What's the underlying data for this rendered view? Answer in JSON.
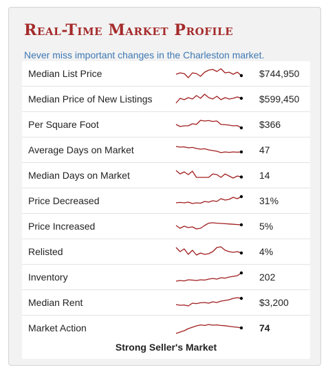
{
  "header": {
    "title": "Real-Time Market Profile",
    "subtitle": "Never miss important changes in the Charleston market."
  },
  "colors": {
    "title": "#a52a2a",
    "subtitle": "#3d78b3",
    "sparkline": "#a01c1c",
    "endpoint": "#000000"
  },
  "metrics": [
    {
      "label": "Median List Price",
      "value": "$744,950"
    },
    {
      "label": "Median Price of New Listings",
      "value": "$599,450"
    },
    {
      "label": "Per Square Foot",
      "value": "$366"
    },
    {
      "label": "Average Days on Market",
      "value": "47"
    },
    {
      "label": "Median Days on Market",
      "value": "14"
    },
    {
      "label": "Price Decreased",
      "value": "31%"
    },
    {
      "label": "Price Increased",
      "value": "5%"
    },
    {
      "label": "Relisted",
      "value": "4%"
    },
    {
      "label": "Inventory",
      "value": "202"
    },
    {
      "label": "Median Rent",
      "value": "$3,200"
    },
    {
      "label": "Market Action",
      "value": "74"
    }
  ],
  "market_status": "Strong Seller's Market",
  "sparklines": [
    [
      0.45,
      0.55,
      0.5,
      0.2,
      0.55,
      0.5,
      0.3,
      0.6,
      0.75,
      0.8,
      0.65,
      0.85,
      0.55,
      0.6,
      0.45,
      0.6,
      0.35
    ],
    [
      0.2,
      0.55,
      0.45,
      0.6,
      0.5,
      0.75,
      0.55,
      0.85,
      0.6,
      0.5,
      0.7,
      0.45,
      0.6,
      0.5,
      0.55,
      0.65,
      0.55
    ],
    [
      0.5,
      0.35,
      0.4,
      0.4,
      0.55,
      0.5,
      0.8,
      0.75,
      0.78,
      0.72,
      0.75,
      0.5,
      0.48,
      0.45,
      0.4,
      0.42,
      0.25
    ],
    [
      0.75,
      0.7,
      0.72,
      0.65,
      0.68,
      0.6,
      0.55,
      0.58,
      0.5,
      0.45,
      0.4,
      0.3,
      0.35,
      0.32,
      0.35,
      0.33,
      0.35
    ],
    [
      0.85,
      0.6,
      0.75,
      0.55,
      0.8,
      0.35,
      0.35,
      0.35,
      0.35,
      0.6,
      0.55,
      0.35,
      0.6,
      0.45,
      0.3,
      0.45,
      0.38
    ],
    [
      0.35,
      0.38,
      0.35,
      0.4,
      0.3,
      0.35,
      0.32,
      0.45,
      0.4,
      0.5,
      0.45,
      0.65,
      0.55,
      0.6,
      0.75,
      0.65,
      0.8
    ],
    [
      0.55,
      0.35,
      0.5,
      0.4,
      0.45,
      0.3,
      0.35,
      0.55,
      0.72,
      0.75,
      0.72,
      0.7,
      0.68,
      0.66,
      0.64,
      0.62,
      0.6
    ],
    [
      0.8,
      0.5,
      0.7,
      0.3,
      0.6,
      0.25,
      0.4,
      0.3,
      0.35,
      0.5,
      0.8,
      0.85,
      0.6,
      0.5,
      0.45,
      0.5,
      0.4
    ],
    [
      0.2,
      0.25,
      0.22,
      0.3,
      0.28,
      0.25,
      0.3,
      0.28,
      0.35,
      0.4,
      0.35,
      0.45,
      0.42,
      0.5,
      0.55,
      0.6,
      0.8
    ],
    [
      0.35,
      0.3,
      0.32,
      0.25,
      0.45,
      0.42,
      0.48,
      0.5,
      0.45,
      0.55,
      0.5,
      0.6,
      0.65,
      0.7,
      0.8,
      0.85,
      0.8
    ],
    [
      0.1,
      0.2,
      0.3,
      0.45,
      0.55,
      0.65,
      0.72,
      0.68,
      0.75,
      0.7,
      0.72,
      0.68,
      0.66,
      0.62,
      0.58,
      0.55,
      0.5
    ]
  ]
}
